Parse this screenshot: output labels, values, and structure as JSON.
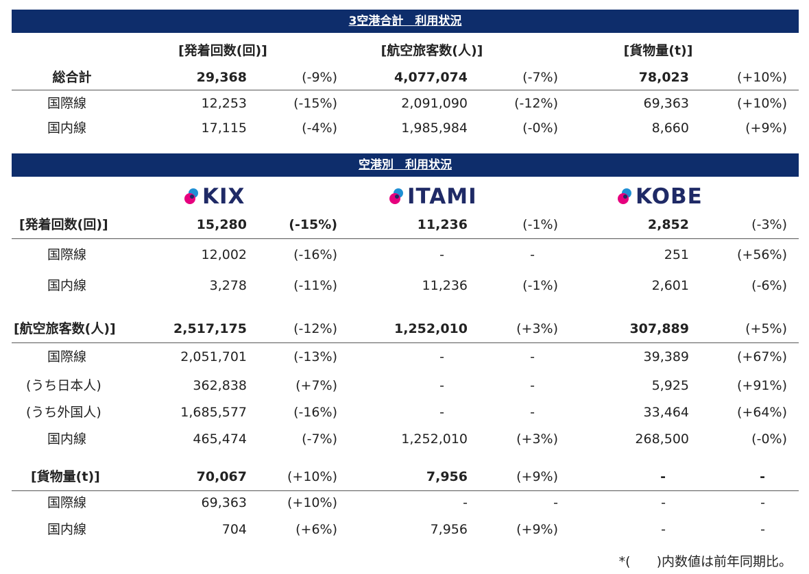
{
  "header1": "3空港合計　利用状況",
  "header2": "空港別　利用状況",
  "totals": {
    "cols": [
      "[発着回数(回)]",
      "[航空旅客数(人)]",
      "[貨物量(t)]"
    ],
    "rows": [
      {
        "label": "総合計",
        "v": [
          "29,368",
          "(-9%)",
          "4,077,074",
          "(-7%)",
          "78,023",
          "(+10%)"
        ]
      },
      {
        "label": "国際線",
        "v": [
          "12,253",
          "(-15%)",
          "2,091,090",
          "(-12%)",
          "69,363",
          "(+10%)"
        ]
      },
      {
        "label": "国内線",
        "v": [
          "17,115",
          "(-4%)",
          "1,985,984",
          "(-0%)",
          "8,660",
          "(+9%)"
        ]
      }
    ]
  },
  "airports": [
    "KIX",
    "ITAMI",
    "KOBE"
  ],
  "logo_colors": {
    "pink": "#e6007e",
    "blue": "#1f8fd4",
    "navy": "#1f2a66"
  },
  "sections": [
    {
      "label": "[発着回数(回)]",
      "v": [
        "15,280",
        "(-15%)",
        "11,236",
        "(-1%)",
        "2,852",
        "(-3%)"
      ],
      "rows": [
        {
          "label": "国際線",
          "v": [
            "12,002",
            "(-16%)",
            "-",
            "-",
            "251",
            "(+56%)"
          ]
        },
        {
          "label": "国内線",
          "v": [
            "3,278",
            "(-11%)",
            "11,236",
            "(-1%)",
            "2,601",
            "(-6%)"
          ]
        }
      ]
    },
    {
      "label": "[航空旅客数(人)]",
      "v": [
        "2,517,175",
        "(-12%)",
        "1,252,010",
        "(+3%)",
        "307,889",
        "(+5%)"
      ],
      "rows": [
        {
          "label": "国際線",
          "v": [
            "2,051,701",
            "(-13%)",
            "-",
            "-",
            "39,389",
            "(+67%)"
          ]
        },
        {
          "label": "(うち日本人)",
          "v": [
            "362,838",
            "(+7%)",
            "-",
            "-",
            "5,925",
            "(+91%)"
          ]
        },
        {
          "label": "(うち外国人)",
          "v": [
            "1,685,577",
            "(-16%)",
            "-",
            "-",
            "33,464",
            "(+64%)"
          ]
        },
        {
          "label": "国内線",
          "v": [
            "465,474",
            "(-7%)",
            "1,252,010",
            "(+3%)",
            "268,500",
            "(-0%)"
          ]
        }
      ]
    },
    {
      "label": "[貨物量(t)]",
      "v": [
        "70,067",
        "(+10%)",
        "7,956",
        "(+9%)",
        "-",
        "-"
      ],
      "rows": [
        {
          "label": "国際線",
          "v": [
            "69,363",
            "(+10%)",
            "-",
            "-",
            "-",
            "-"
          ]
        },
        {
          "label": "国内線",
          "v": [
            "704",
            "(+6%)",
            "7,956",
            "(+9%)",
            "-",
            "-"
          ]
        }
      ]
    }
  ],
  "footnote": "*(　　)内数値は前年同期比。"
}
